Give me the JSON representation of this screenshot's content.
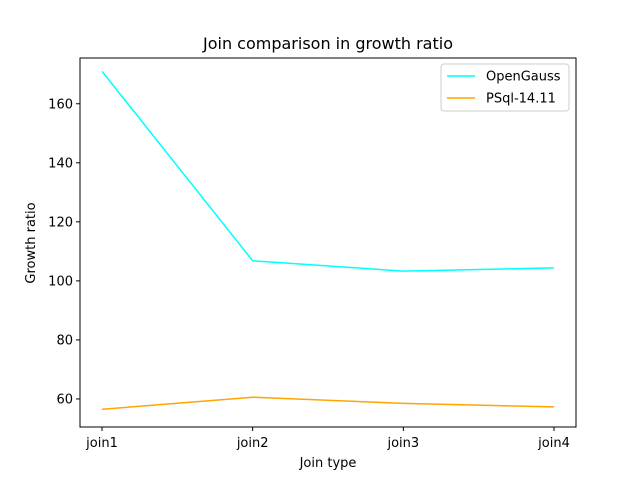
{
  "chart_data": {
    "type": "line",
    "title": "Join comparison in growth ratio",
    "xlabel": "Join type",
    "ylabel": "Growth ratio",
    "categories": [
      "join1",
      "join2",
      "join3",
      "join4"
    ],
    "ylim": [
      50.5,
      175.5
    ],
    "yticks": [
      60,
      80,
      100,
      120,
      140,
      160
    ],
    "legend_position": "top-right",
    "series": [
      {
        "name": "OpenGauss",
        "color": "#00ffff",
        "values": [
          171.0,
          106.8,
          103.3,
          104.4
        ]
      },
      {
        "name": "PSql-14.11",
        "color": "#ffa500",
        "values": [
          56.5,
          60.6,
          58.5,
          57.3
        ]
      }
    ]
  }
}
